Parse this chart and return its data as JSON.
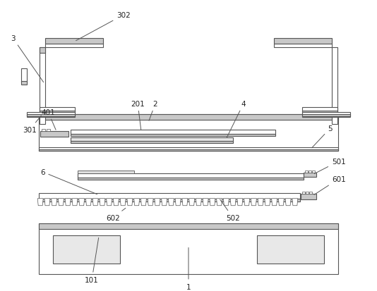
{
  "bg_color": "#ffffff",
  "line_color": "#555555",
  "fill_light": "#c8c8c8",
  "figsize": [
    5.34,
    4.14
  ],
  "dpi": 100
}
